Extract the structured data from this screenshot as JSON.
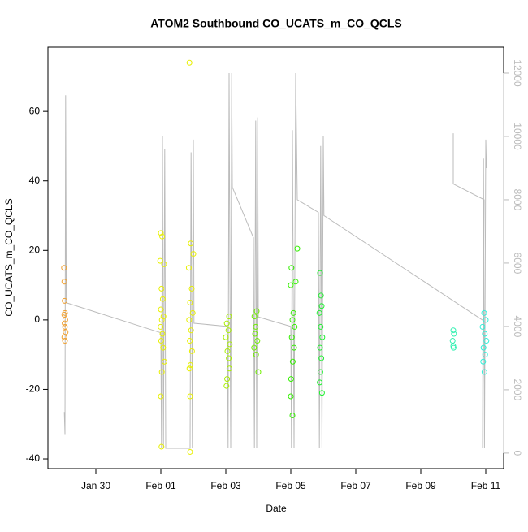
{
  "chart_data": {
    "type": "scatter",
    "title": "ATOM2 Southbound CO_UCATS_m_CO_QCLS",
    "x_label": "Date",
    "y_label": "CO_UCATS_m_CO_QCLS",
    "xlim": [
      28.525,
      42.55
    ],
    "xticks": [
      {
        "value": 30,
        "label": "Jan 30"
      },
      {
        "value": 32,
        "label": "Feb 01"
      },
      {
        "value": 34,
        "label": "Feb 03"
      },
      {
        "value": 36,
        "label": "Feb 05"
      },
      {
        "value": 38,
        "label": "Feb 07"
      },
      {
        "value": 40,
        "label": "Feb 09"
      },
      {
        "value": 42,
        "label": "Feb 11"
      }
    ],
    "ylim": [
      -42.8,
      78.5
    ],
    "yticks": [
      -40,
      -20,
      0,
      20,
      40,
      60
    ],
    "y2lim": [
      -490,
      12820
    ],
    "y2ticks": [
      0,
      2000,
      4000,
      6000,
      8000,
      10000,
      12000
    ],
    "series": [
      {
        "color": "#f0a030",
        "x": [
          29.02,
          29.03,
          29.04,
          29.05,
          29.03,
          29.06,
          29.04,
          29.05,
          29.07,
          29.03,
          29.05
        ],
        "values": [
          15,
          11,
          5.5,
          2,
          1.5,
          0,
          -1,
          -2,
          -3.5,
          -5,
          -6
        ]
      },
      {
        "color": "#e8f000",
        "x": [
          32.0,
          32.04,
          31.98,
          32.1,
          32.02,
          32.06,
          32.0,
          32.08,
          32.03,
          31.99,
          32.05,
          32.01,
          32.07,
          32.11,
          32.03,
          32.0,
          32.02
        ],
        "values": [
          25,
          24,
          17,
          16,
          9,
          6,
          3,
          1,
          0,
          -2,
          -4,
          -6,
          -8,
          -12,
          -15,
          -22,
          -36.5
        ]
      },
      {
        "color": "#e8f000",
        "x": [
          32.88,
          32.92,
          33.0,
          32.86,
          32.95,
          32.9,
          32.98,
          32.87,
          32.93,
          32.89,
          32.96,
          32.91,
          32.88,
          32.9,
          32.9
        ],
        "values": [
          74,
          22,
          19,
          15,
          9,
          5,
          2,
          0,
          -3,
          -6,
          -9,
          -13,
          -14,
          -22,
          -38
        ]
      },
      {
        "color": "#a8f000",
        "x": [
          34.1,
          34.03,
          34.08,
          34.0,
          34.12,
          34.05,
          34.09,
          34.11,
          34.04,
          34.02
        ],
        "values": [
          1,
          -1,
          -3,
          -5,
          -7,
          -9,
          -11,
          -14,
          -17,
          -19
        ]
      },
      {
        "color": "#70f000",
        "x": [
          34.95,
          34.88,
          34.92,
          34.9,
          34.97,
          34.87,
          34.93,
          35.0
        ],
        "values": [
          2.5,
          1,
          -2,
          -4,
          -6,
          -8,
          -10,
          -15
        ]
      },
      {
        "color": "#33f000",
        "x": [
          36.2,
          36.02,
          36.15,
          36.0,
          36.08,
          36.05,
          36.12,
          36.03,
          36.1,
          36.06,
          36.01,
          36.0,
          36.05
        ],
        "values": [
          20.5,
          15,
          11,
          10,
          2,
          0,
          -2,
          -5,
          -8,
          -12,
          -17,
          -22,
          -27.5
        ]
      },
      {
        "color": "#1ef030",
        "x": [
          36.9,
          36.93,
          36.95,
          36.88,
          36.92,
          36.97,
          36.9,
          36.94,
          36.91,
          36.89,
          36.96
        ],
        "values": [
          13.5,
          7,
          4,
          2,
          -2,
          -5,
          -8,
          -11,
          -15,
          -18,
          -21
        ]
      },
      {
        "color": "#30f0b0",
        "x": [
          41.0,
          41.02,
          40.98,
          41.0,
          41.01
        ],
        "values": [
          -3,
          -4,
          -6,
          -7.5,
          -8
        ]
      },
      {
        "color": "#30f0d8",
        "x": [
          41.95,
          42.0,
          41.9,
          41.97,
          42.02,
          41.93,
          41.98,
          41.92,
          41.96
        ],
        "values": [
          2,
          0,
          -2,
          -4,
          -6,
          -8,
          -10,
          -12,
          -15
        ]
      },
      {
        "color": "#bbbbbb",
        "axis": "y2",
        "x": [
          29.03,
          29.05,
          29.07,
          29.09,
          32.0,
          32.02,
          32.05,
          32.08,
          32.12,
          32.15,
          32.9,
          32.93,
          32.97,
          33.0,
          33.02,
          34.05,
          34.07,
          34.1,
          34.15,
          34.18,
          34.2,
          34.85,
          34.88,
          34.92,
          34.95,
          34.98,
          35.0,
          36.0,
          36.02,
          36.05,
          36.1,
          36.15,
          36.2,
          36.85,
          36.88,
          36.92,
          36.96,
          37.0,
          37.02,
          41.9,
          null,
          41.0,
          41.0,
          41.95,
          41.9,
          41.93,
          41.96,
          42.0,
          42.02
        ],
        "values": [
          1300,
          600,
          11300,
          4750,
          3800,
          150,
          10000,
          150,
          9600,
          150,
          150,
          9500,
          150,
          9900,
          4100,
          4000,
          150,
          12000,
          150,
          12000,
          8400,
          6800,
          150,
          10500,
          150,
          10600,
          4300,
          4000,
          150,
          10200,
          150,
          12000,
          8000,
          7600,
          150,
          9700,
          150,
          10000,
          7500,
          4200,
          null,
          10100,
          8500,
          8000,
          150,
          9300,
          150,
          9900,
          9000
        ]
      }
    ]
  }
}
